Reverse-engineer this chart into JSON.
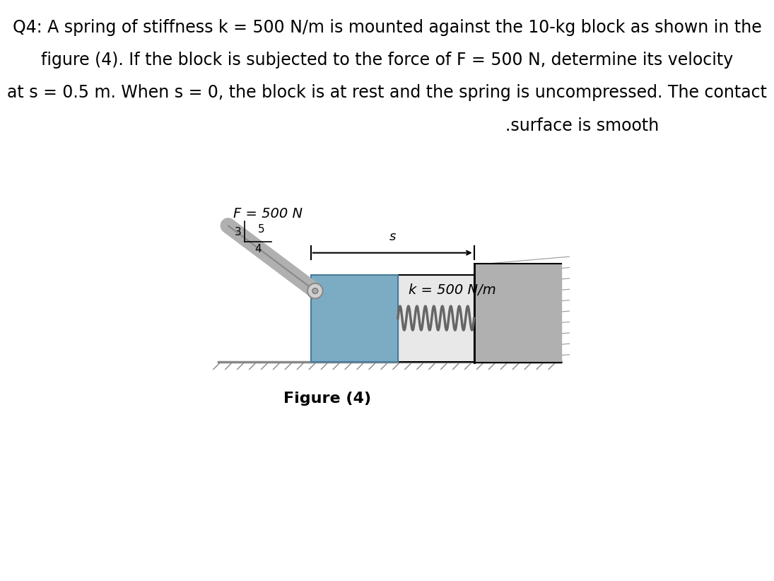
{
  "bg_color": "#ffffff",
  "text_line1": "Q4: A spring of stiffness k = 500 N/m is mounted against the 10-kg block as shown in the",
  "text_line2": "figure (4). If the block is subjected to the force of F = 500 N, determine its velocity",
  "text_line3": "at s = 0.5 m. When s = 0, the block is at rest and the spring is uncompressed. The contact",
  "text_line4": ".surface is smooth",
  "figure_caption": "Figure (4)",
  "F_label": "F = 500 N",
  "k_label": "k = 500 N/m",
  "s_label": "s",
  "ratio_3": "3",
  "ratio_4": "4",
  "ratio_5": "5",
  "block_color": "#7bacc4",
  "spring_area_color": "#e8e8e8",
  "wall_fill_color": "#b0b0b0",
  "wall_border_color": "#888888",
  "ground_color": "#888888",
  "spring_color": "#666666",
  "rod_color": "#b0b0b0",
  "text_fontsize": 17.0,
  "caption_fontsize": 16
}
